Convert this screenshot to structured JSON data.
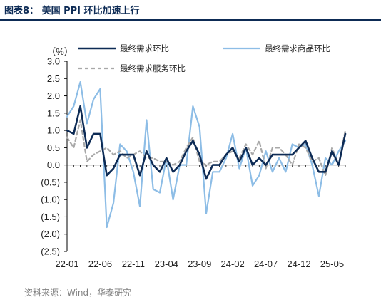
{
  "header": {
    "title": "图表8：  美国 PPI 环比加速上行"
  },
  "footer": {
    "source": "资料来源：Wind，华泰研究"
  },
  "chart_data": {
    "type": "line",
    "title": "图表8：  美国 PPI 环比加速上行",
    "ylabel": "（%）",
    "ylim": [
      -2.5,
      3.0
    ],
    "ytick_labels": [
      "3.0",
      "2.5",
      "2.0",
      "1.5",
      "1.0",
      "0.5",
      "0.0",
      "(0.5)",
      "(1.0)",
      "(1.5)",
      "(2.0)",
      "(2.5)"
    ],
    "xtick_labels": [
      "22-01",
      "22-06",
      "22-11",
      "23-04",
      "23-09",
      "24-02",
      "24-07",
      "24-12",
      "25-05"
    ],
    "x": [
      "22-01",
      "22-02",
      "22-03",
      "22-04",
      "22-05",
      "22-06",
      "22-07",
      "22-08",
      "22-09",
      "22-10",
      "22-11",
      "22-12",
      "23-01",
      "23-02",
      "23-03",
      "23-04",
      "23-05",
      "23-06",
      "23-07",
      "23-08",
      "23-09",
      "23-10",
      "23-11",
      "23-12",
      "24-01",
      "24-02",
      "24-03",
      "24-04",
      "24-05",
      "24-06",
      "24-07",
      "24-08",
      "24-09",
      "24-10",
      "24-11",
      "24-12",
      "25-01",
      "25-02",
      "25-03",
      "25-04",
      "25-05",
      "25-06",
      "25-07"
    ],
    "legend": "top",
    "series": [
      {
        "name": "最终需求环比",
        "color": "#0d2b55",
        "dash": "",
        "values": [
          1.0,
          0.9,
          1.7,
          0.5,
          0.9,
          0.9,
          -0.3,
          -0.1,
          0.3,
          0.3,
          0.3,
          -0.3,
          0.4,
          0.0,
          -0.2,
          0.2,
          -0.2,
          0.0,
          0.4,
          0.7,
          0.3,
          -0.4,
          0.0,
          0.0,
          0.3,
          0.5,
          0.1,
          0.5,
          0.0,
          0.2,
          0.0,
          0.3,
          0.3,
          0.3,
          0.3,
          0.5,
          0.7,
          0.2,
          -0.2,
          -0.2,
          0.4,
          0.0,
          0.9
        ]
      },
      {
        "name": "最终需求商品环比",
        "color": "#8dbde6",
        "dash": "",
        "values": [
          1.4,
          1.7,
          2.4,
          1.2,
          1.9,
          2.2,
          -1.8,
          -1.1,
          0.6,
          0.4,
          -0.2,
          -1.2,
          1.3,
          -0.7,
          -0.8,
          0.2,
          -1.0,
          0.0,
          0.0,
          1.7,
          1.1,
          -1.4,
          -0.2,
          -0.2,
          0.2,
          0.9,
          -0.1,
          0.5,
          -0.6,
          -0.3,
          0.4,
          -0.2,
          0.2,
          -0.2,
          0.6,
          0.5,
          0.6,
          0.0,
          -0.9,
          0.2,
          0.0,
          0.4,
          0.7
        ]
      },
      {
        "name": "最终需求服务环比",
        "color": "#a8a8a8",
        "dash": "5,4",
        "values": [
          0.8,
          0.5,
          1.3,
          0.1,
          0.3,
          0.4,
          0.5,
          0.3,
          0.4,
          0.2,
          0.3,
          0.4,
          0.2,
          0.2,
          0.1,
          0.1,
          0.0,
          0.1,
          0.5,
          0.8,
          0.1,
          0.0,
          0.1,
          0.1,
          0.3,
          0.4,
          0.2,
          0.6,
          0.3,
          0.7,
          -0.1,
          0.5,
          0.5,
          0.3,
          0.0,
          0.6,
          0.5,
          0.1,
          0.2,
          -0.3,
          0.5,
          0.0,
          1.0
        ]
      }
    ]
  }
}
